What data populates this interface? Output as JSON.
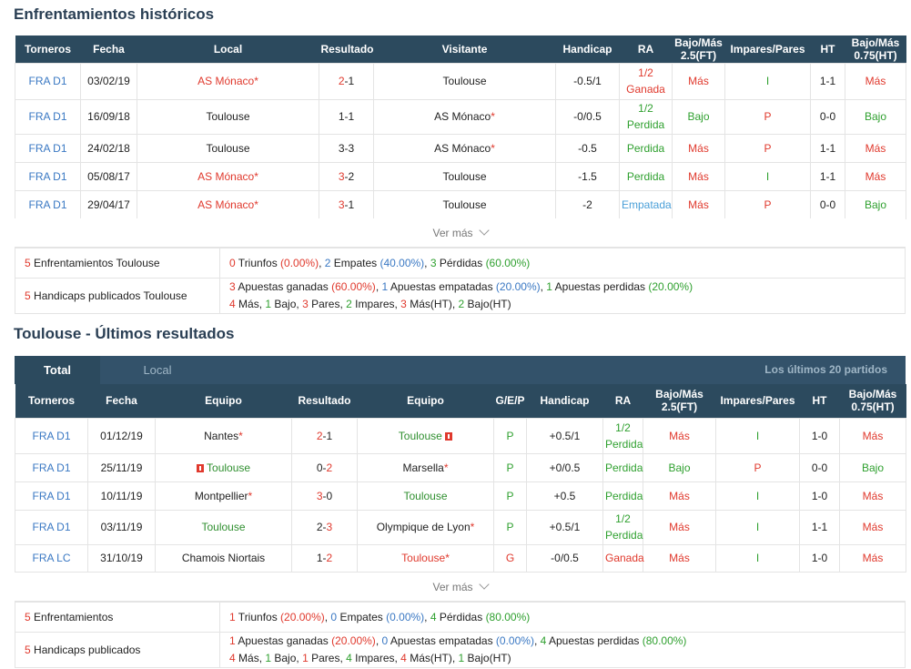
{
  "h2h": {
    "title": "Enfrentamientos históricos",
    "headers": [
      "Torneros",
      "Fecha",
      "Local",
      "Resultado",
      "Visitante",
      "Handicap",
      "RA",
      "Bajo/Más 2.5(FT)",
      "Impares/Pares",
      "HT",
      "Bajo/Más 0.75(HT)"
    ],
    "rows": [
      {
        "league": "FRA D1",
        "date": "03/02/19",
        "home": "AS Mónaco",
        "home_star": "*",
        "home_color": "red",
        "score_a": "2",
        "score_sep": "-",
        "score_b": "1",
        "score_a_color": "red",
        "score_b_color": "",
        "away": "Toulouse",
        "away_star": "",
        "away_color": "",
        "handicap": "-0.5/1",
        "ra": "1/2 Ganada",
        "ra_line1": "1/2",
        "ra_line2": "Ganada",
        "ra_color": "red",
        "ou": "Más",
        "ou_color": "red",
        "oe": "I",
        "oe_color": "green",
        "ht": "1-1",
        "ou_ht": "Más",
        "ou_ht_color": "red"
      },
      {
        "league": "FRA D1",
        "date": "16/09/18",
        "home": "Toulouse",
        "home_star": "",
        "home_color": "",
        "score_a": "1",
        "score_sep": "-",
        "score_b": "1",
        "score_a_color": "",
        "score_b_color": "",
        "away": "AS Mónaco",
        "away_star": "*",
        "away_color": "",
        "handicap": "-0/0.5",
        "ra_line1": "1/2",
        "ra_line2": "Perdida",
        "ra_color": "green",
        "ou": "Bajo",
        "ou_color": "green",
        "oe": "P",
        "oe_color": "red",
        "ht": "0-0",
        "ou_ht": "Bajo",
        "ou_ht_color": "green"
      },
      {
        "league": "FRA D1",
        "date": "24/02/18",
        "home": "Toulouse",
        "home_star": "",
        "home_color": "",
        "score_a": "3",
        "score_sep": "-",
        "score_b": "3",
        "score_a_color": "",
        "score_b_color": "",
        "away": "AS Mónaco",
        "away_star": "*",
        "away_color": "",
        "handicap": "-0.5",
        "ra_line1": "Perdida",
        "ra_line2": "",
        "ra_color": "green",
        "ou": "Más",
        "ou_color": "red",
        "oe": "P",
        "oe_color": "red",
        "ht": "1-1",
        "ou_ht": "Más",
        "ou_ht_color": "red"
      },
      {
        "league": "FRA D1",
        "date": "05/08/17",
        "home": "AS Mónaco",
        "home_star": "*",
        "home_color": "red",
        "score_a": "3",
        "score_sep": "-",
        "score_b": "2",
        "score_a_color": "red",
        "score_b_color": "",
        "away": "Toulouse",
        "away_star": "",
        "away_color": "",
        "handicap": "-1.5",
        "ra_line1": "Perdida",
        "ra_line2": "",
        "ra_color": "green",
        "ou": "Más",
        "ou_color": "red",
        "oe": "I",
        "oe_color": "green",
        "ht": "1-1",
        "ou_ht": "Más",
        "ou_ht_color": "red"
      },
      {
        "league": "FRA D1",
        "date": "29/04/17",
        "home": "AS Mónaco",
        "home_star": "*",
        "home_color": "red",
        "score_a": "3",
        "score_sep": "-",
        "score_b": "1",
        "score_a_color": "red",
        "score_b_color": "",
        "away": "Toulouse",
        "away_star": "",
        "away_color": "",
        "handicap": "-2",
        "ra_line1": "Empatada",
        "ra_line2": "",
        "ra_color": "lblue",
        "ou": "Más",
        "ou_color": "red",
        "oe": "P",
        "oe_color": "red",
        "ht": "0-0",
        "ou_ht": "Bajo",
        "ou_ht_color": "green"
      }
    ],
    "ver_mas": "Ver más",
    "summary": {
      "row1_label_num": "5",
      "row1_label": " Enfrentamientos Toulouse",
      "row1": [
        {
          "t": "0",
          "c": "red"
        },
        {
          "t": " Triunfos ",
          "c": ""
        },
        {
          "t": "(0.00%)",
          "c": "red"
        },
        {
          "t": ", ",
          "c": ""
        },
        {
          "t": "2",
          "c": "blue"
        },
        {
          "t": " Empates ",
          "c": ""
        },
        {
          "t": "(40.00%)",
          "c": "blue"
        },
        {
          "t": ", ",
          "c": ""
        },
        {
          "t": "3",
          "c": "green"
        },
        {
          "t": " Pérdidas ",
          "c": ""
        },
        {
          "t": "(60.00%)",
          "c": "green"
        }
      ],
      "row2_label_num": "5",
      "row2_label": " Handicaps publicados Toulouse",
      "row2a": [
        {
          "t": "3",
          "c": "red"
        },
        {
          "t": " Apuestas ganadas ",
          "c": ""
        },
        {
          "t": "(60.00%)",
          "c": "red"
        },
        {
          "t": ", ",
          "c": ""
        },
        {
          "t": "1",
          "c": "blue"
        },
        {
          "t": " Apuestas empatadas ",
          "c": ""
        },
        {
          "t": "(20.00%)",
          "c": "blue"
        },
        {
          "t": ", ",
          "c": ""
        },
        {
          "t": "1",
          "c": "green"
        },
        {
          "t": " Apuestas perdidas ",
          "c": ""
        },
        {
          "t": "(20.00%)",
          "c": "green"
        }
      ],
      "row2b": [
        {
          "t": "4",
          "c": "red"
        },
        {
          "t": " Más, ",
          "c": ""
        },
        {
          "t": "1",
          "c": "green"
        },
        {
          "t": " Bajo, ",
          "c": ""
        },
        {
          "t": "3",
          "c": "red"
        },
        {
          "t": " Pares, ",
          "c": ""
        },
        {
          "t": "2",
          "c": "green"
        },
        {
          "t": " Impares, ",
          "c": ""
        },
        {
          "t": "3",
          "c": "red"
        },
        {
          "t": " Más(HT), ",
          "c": ""
        },
        {
          "t": "2",
          "c": "green"
        },
        {
          "t": " Bajo(HT)",
          "c": ""
        }
      ]
    }
  },
  "recent": {
    "title": "Toulouse - Últimos resultados",
    "tab_total": "Total",
    "tab_local": "Local",
    "last_n": "Los últimos 20 partidos",
    "headers": [
      "Torneros",
      "Fecha",
      "Equipo",
      "Resultado",
      "Equipo",
      "G/E/P",
      "Handicap",
      "RA",
      "Bajo/Más 2.5(FT)",
      "Impares/Pares",
      "HT",
      "Bajo/Más 0.75(HT)"
    ],
    "rows": [
      {
        "league": "FRA D1",
        "date": "01/12/19",
        "home": "Nantes",
        "home_star": "*",
        "home_card": false,
        "home_color": "",
        "score_a": "2",
        "score_b": "1",
        "score_a_color": "red",
        "score_b_color": "",
        "away": "Toulouse",
        "away_star": "",
        "away_card": true,
        "away_color": "dgreen",
        "gep": "P",
        "handicap": "+0.5/1",
        "ra_line1": "1/2",
        "ra_line2": "Perdida",
        "ra_color": "green",
        "ou": "Más",
        "ou_color": "red",
        "oe": "I",
        "oe_color": "green",
        "ht": "1-0",
        "ou_ht": "Más",
        "ou_ht_color": "red"
      },
      {
        "league": "FRA D1",
        "date": "25/11/19",
        "home": "Toulouse",
        "home_star": "",
        "home_card": true,
        "home_color": "dgreen",
        "score_a": "0",
        "score_b": "2",
        "score_a_color": "",
        "score_b_color": "red",
        "away": "Marsella",
        "away_star": "*",
        "away_card": false,
        "away_color": "",
        "gep": "P",
        "handicap": "+0/0.5",
        "ra_line1": "Perdida",
        "ra_line2": "",
        "ra_color": "green",
        "ou": "Bajo",
        "ou_color": "green",
        "oe": "P",
        "oe_color": "red",
        "ht": "0-0",
        "ou_ht": "Bajo",
        "ou_ht_color": "green"
      },
      {
        "league": "FRA D1",
        "date": "10/11/19",
        "home": "Montpellier",
        "home_star": "*",
        "home_card": false,
        "home_color": "",
        "score_a": "3",
        "score_b": "0",
        "score_a_color": "red",
        "score_b_color": "",
        "away": "Toulouse",
        "away_star": "",
        "away_card": false,
        "away_color": "dgreen",
        "gep": "P",
        "handicap": "+0.5",
        "ra_line1": "Perdida",
        "ra_line2": "",
        "ra_color": "green",
        "ou": "Más",
        "ou_color": "red",
        "oe": "I",
        "oe_color": "green",
        "ht": "1-0",
        "ou_ht": "Más",
        "ou_ht_color": "red"
      },
      {
        "league": "FRA D1",
        "date": "03/11/19",
        "home": "Toulouse",
        "home_star": "",
        "home_card": false,
        "home_color": "dgreen",
        "score_a": "2",
        "score_b": "3",
        "score_a_color": "",
        "score_b_color": "red",
        "away": "Olympique de Lyon",
        "away_star": "*",
        "away_card": false,
        "away_color": "",
        "gep": "P",
        "handicap": "+0.5/1",
        "ra_line1": "1/2",
        "ra_line2": "Perdida",
        "ra_color": "green",
        "ou": "Más",
        "ou_color": "red",
        "oe": "I",
        "oe_color": "green",
        "ht": "1-1",
        "ou_ht": "Más",
        "ou_ht_color": "red"
      },
      {
        "league": "FRA LC",
        "date": "31/10/19",
        "home": "Chamois Niortais",
        "home_star": "",
        "home_card": false,
        "home_color": "",
        "score_a": "1",
        "score_b": "2",
        "score_a_color": "",
        "score_b_color": "red",
        "away": "Toulouse",
        "away_star": "*",
        "away_card": false,
        "away_color": "red",
        "gep": "G",
        "gep_color": "red",
        "handicap": "-0/0.5",
        "ra_line1": "Ganada",
        "ra_line2": "",
        "ra_color": "red",
        "ou": "Más",
        "ou_color": "red",
        "oe": "I",
        "oe_color": "green",
        "ht": "1-0",
        "ou_ht": "Más",
        "ou_ht_color": "red"
      }
    ],
    "ver_mas": "Ver más",
    "summary": {
      "row1_label_num": "5",
      "row1_label": " Enfrentamientos",
      "row1": [
        {
          "t": "1",
          "c": "red"
        },
        {
          "t": " Triunfos ",
          "c": ""
        },
        {
          "t": "(20.00%)",
          "c": "red"
        },
        {
          "t": ", ",
          "c": ""
        },
        {
          "t": "0",
          "c": "blue"
        },
        {
          "t": " Empates ",
          "c": ""
        },
        {
          "t": "(0.00%)",
          "c": "blue"
        },
        {
          "t": ", ",
          "c": ""
        },
        {
          "t": "4",
          "c": "green"
        },
        {
          "t": " Pérdidas ",
          "c": ""
        },
        {
          "t": "(80.00%)",
          "c": "green"
        }
      ],
      "row2_label_num": "5",
      "row2_label": " Handicaps publicados",
      "row2a": [
        {
          "t": "1",
          "c": "red"
        },
        {
          "t": " Apuestas ganadas ",
          "c": ""
        },
        {
          "t": "(20.00%)",
          "c": "red"
        },
        {
          "t": ", ",
          "c": ""
        },
        {
          "t": "0",
          "c": "blue"
        },
        {
          "t": " Apuestas empatadas ",
          "c": ""
        },
        {
          "t": "(0.00%)",
          "c": "blue"
        },
        {
          "t": ", ",
          "c": ""
        },
        {
          "t": "4",
          "c": "green"
        },
        {
          "t": " Apuestas perdidas ",
          "c": ""
        },
        {
          "t": "(80.00%)",
          "c": "green"
        }
      ],
      "row2b": [
        {
          "t": "4",
          "c": "red"
        },
        {
          "t": " Más, ",
          "c": ""
        },
        {
          "t": "1",
          "c": "green"
        },
        {
          "t": " Bajo, ",
          "c": ""
        },
        {
          "t": "1",
          "c": "red"
        },
        {
          "t": " Pares, ",
          "c": ""
        },
        {
          "t": "4",
          "c": "green"
        },
        {
          "t": " Impares, ",
          "c": ""
        },
        {
          "t": "4",
          "c": "red"
        },
        {
          "t": " Más(HT), ",
          "c": ""
        },
        {
          "t": "1",
          "c": "green"
        },
        {
          "t": " Bajo(HT)",
          "c": ""
        }
      ]
    }
  }
}
